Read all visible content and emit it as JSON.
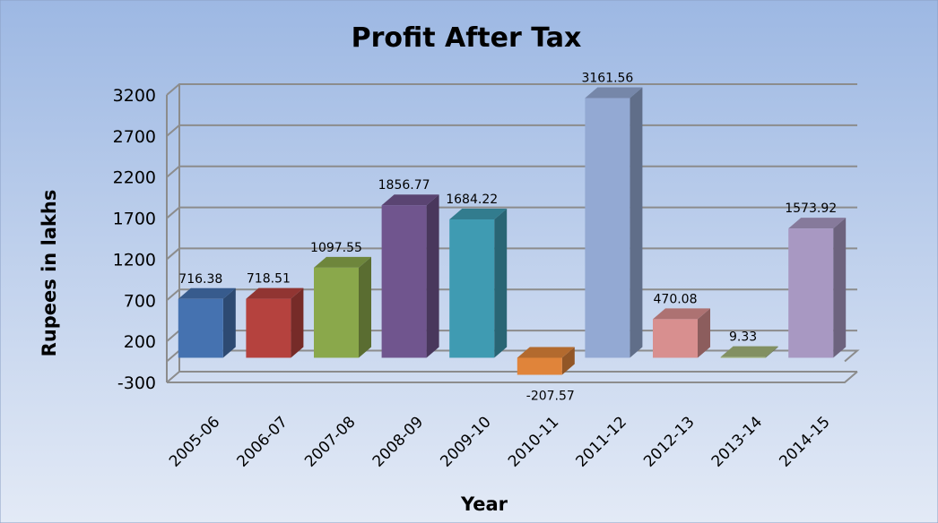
{
  "chart_data": {
    "type": "bar",
    "title": "Profit After Tax",
    "xlabel": "Year",
    "ylabel": "Rupees in lakhs",
    "categories": [
      "2005-06",
      "2006-07",
      "2007-08",
      "2008-09",
      "2009-10",
      "2010-11",
      "2011-12",
      "2012-13",
      "2013-14",
      "2014-15"
    ],
    "values": [
      716.38,
      718.51,
      1097.55,
      1856.77,
      1684.22,
      -207.57,
      3161.56,
      470.08,
      9.33,
      1573.92
    ],
    "value_labels": [
      "716.38",
      "718.51",
      "1097.55",
      "1856.77",
      "1684.22",
      "-207.57",
      "3161.56",
      "470.08",
      "9.33",
      "1573.92"
    ],
    "ylim": [
      -300,
      3200
    ],
    "yticks": [
      "3200",
      "2700",
      "2200",
      "1700",
      "1200",
      "700",
      "200",
      "-300"
    ],
    "grid": true,
    "style": "3d-column",
    "colors": [
      "#4572b0",
      "#b5423e",
      "#8aa84b",
      "#70558e",
      "#3f9bb2",
      "#e0843a",
      "#93a9d3",
      "#d88f8f",
      "#a2b47a",
      "#a898c2"
    ]
  }
}
